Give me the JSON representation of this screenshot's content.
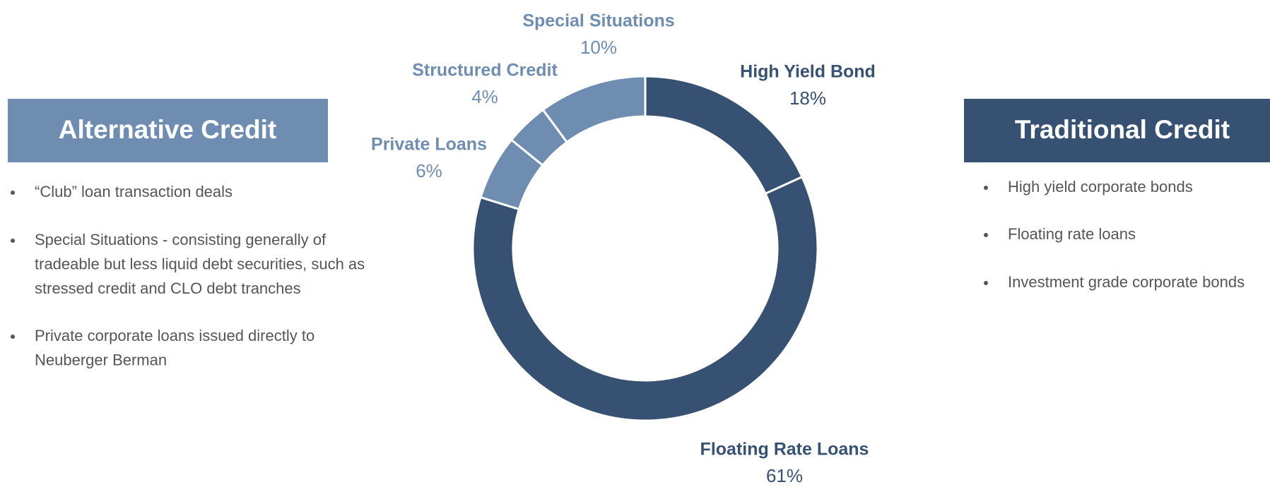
{
  "chart_data": {
    "type": "pie",
    "categories": [
      "High Yield Bond",
      "Floating Rate Loans",
      "Private Loans",
      "Structured Credit",
      "Special Situations"
    ],
    "values": [
      18,
      61,
      6,
      4,
      10
    ],
    "value_labels": [
      "18%",
      "61%",
      "6%",
      "4%",
      "10%"
    ],
    "colors": [
      "#375173",
      "#375173",
      "#6f8db1",
      "#6f8db1",
      "#6f8db1"
    ],
    "donut": true
  },
  "left_panel": {
    "title": "Alternative Credit",
    "bullets": [
      [
        "“Club” loan transaction deals"
      ],
      [
        "Special Situations - consisting generally of",
        "tradeable but less liquid debt securities, such as",
        "stressed credit and CLO debt tranches"
      ],
      [
        "Private corporate loans issued directly to",
        "Neuberger Berman"
      ]
    ]
  },
  "right_panel": {
    "title": "Traditional Credit",
    "bullets": [
      [
        "High yield corporate bonds"
      ],
      [
        "Floating rate loans"
      ],
      [
        "Investment grade corporate bonds"
      ]
    ]
  }
}
